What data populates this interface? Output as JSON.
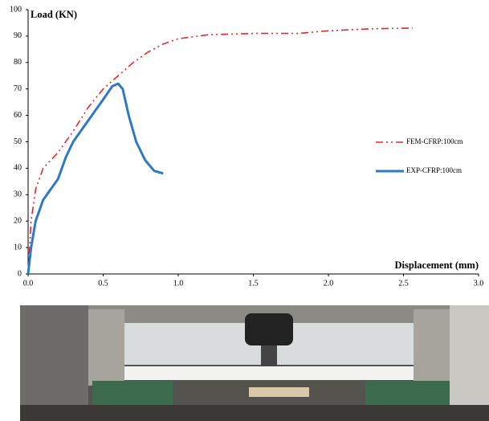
{
  "chart_data": {
    "type": "line",
    "y_label": "Load (KN)",
    "x_label": "Displacement (mm)",
    "xlim": [
      0,
      3.0
    ],
    "ylim": [
      0,
      100
    ],
    "xticks": [
      {
        "value": 0,
        "label": "0.0"
      },
      0.5,
      {
        "value": 1,
        "label": "1.0"
      },
      1.5,
      {
        "value": 2,
        "label": "2.0"
      },
      2.5,
      {
        "value": 3,
        "label": "3.0"
      }
    ],
    "yticks": [
      0,
      10,
      20,
      30,
      40,
      50,
      60,
      70,
      80,
      90,
      100
    ],
    "grid": false,
    "legend": "right",
    "series": [
      {
        "name": "FEM-CFRP:100cm",
        "color": "#e8262a",
        "dash": "dashdot",
        "x": [
          0,
          0.02,
          0.05,
          0.1,
          0.2,
          0.3,
          0.4,
          0.5,
          0.6,
          0.7,
          0.8,
          0.9,
          1.0,
          1.2,
          1.5,
          1.8,
          2.0,
          2.3,
          2.56
        ],
        "values": [
          0,
          20,
          32,
          40,
          46,
          54,
          63,
          70,
          75,
          80,
          84,
          87,
          89,
          90.5,
          91,
          91,
          92,
          92.8,
          93
        ]
      },
      {
        "name": "EXP-CFRP:100cm",
        "color": "#2f78c4",
        "dash": "solid",
        "x": [
          0,
          0.02,
          0.05,
          0.1,
          0.15,
          0.2,
          0.25,
          0.3,
          0.4,
          0.5,
          0.56,
          0.6,
          0.63,
          0.67,
          0.72,
          0.78,
          0.84,
          0.9
        ],
        "values": [
          0,
          10,
          20,
          28,
          32,
          36,
          44,
          50,
          58,
          66,
          71,
          72,
          70,
          60,
          50,
          43,
          39,
          38
        ]
      }
    ]
  }
}
